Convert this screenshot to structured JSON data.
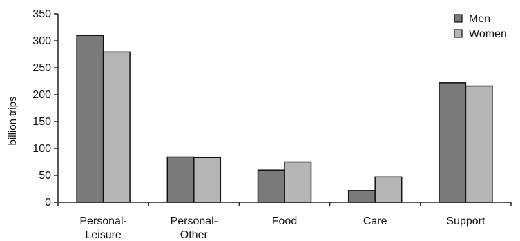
{
  "chart_data": {
    "type": "bar",
    "categories": [
      [
        "Personal-",
        "Leisure"
      ],
      [
        "Personal-",
        "Other"
      ],
      [
        "Food"
      ],
      [
        "Care"
      ],
      [
        "Support"
      ]
    ],
    "series": [
      {
        "name": "Men",
        "color": "#7a7a7a",
        "values": [
          310,
          84,
          60,
          22,
          222
        ]
      },
      {
        "name": "Women",
        "color": "#b5b5b5",
        "values": [
          279,
          83,
          75,
          47,
          216
        ]
      }
    ],
    "ylabel": "billion trips",
    "ylim": [
      0,
      350
    ],
    "yticks": [
      0,
      50,
      100,
      150,
      200,
      250,
      300,
      350
    ],
    "grid": false,
    "legend_position": "top-right"
  }
}
